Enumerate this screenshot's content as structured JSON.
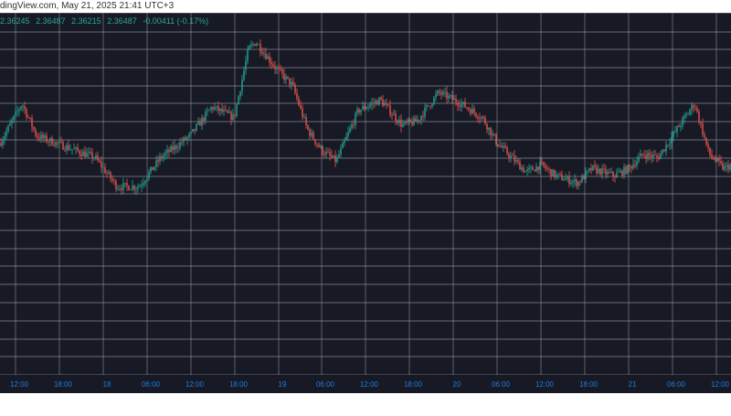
{
  "header": {
    "source_text": "dingView.com, May 21, 2025 21:41 UTC+3"
  },
  "ohlc": {
    "open": "2.36245",
    "high": "2.36487",
    "low": "2.36215",
    "close": "2.36487",
    "change": "-0.00411 (-0.17%)"
  },
  "colors": {
    "background": "#171a24",
    "grid": "#a8acb8",
    "up": "#26a69a",
    "down": "#ef5350",
    "tick_label": "#1f7ae0"
  },
  "chart_data": {
    "type": "candlestick",
    "title": "",
    "xlabel": "",
    "ylabel": "",
    "grid": true,
    "ylim": [
      0,
      100
    ],
    "x_ticks": [
      "12:00",
      "18:00",
      "18",
      "06:00",
      "12:00",
      "18:00",
      "19",
      "06:00",
      "12:00",
      "18:00",
      "20",
      "06:00",
      "12:00",
      "18:00",
      "21",
      "06:00",
      "12:00"
    ],
    "close_path": [
      [
        0,
        64
      ],
      [
        3,
        75
      ],
      [
        5,
        66
      ],
      [
        9,
        63
      ],
      [
        13,
        60
      ],
      [
        16,
        52
      ],
      [
        19,
        52
      ],
      [
        22,
        60
      ],
      [
        26,
        66
      ],
      [
        29,
        74
      ],
      [
        32,
        71
      ],
      [
        34,
        90
      ],
      [
        35,
        92
      ],
      [
        38,
        84
      ],
      [
        40,
        80
      ],
      [
        42,
        68
      ],
      [
        44,
        62
      ],
      [
        46,
        59
      ],
      [
        49,
        73
      ],
      [
        52,
        76
      ],
      [
        55,
        69
      ],
      [
        57,
        70
      ],
      [
        60,
        78
      ],
      [
        63,
        75
      ],
      [
        66,
        71
      ],
      [
        68,
        64
      ],
      [
        70,
        60
      ],
      [
        72,
        56
      ],
      [
        74,
        58
      ],
      [
        76,
        55
      ],
      [
        79,
        53
      ],
      [
        81,
        57
      ],
      [
        84,
        55
      ],
      [
        86,
        57
      ],
      [
        88,
        61
      ],
      [
        90,
        60
      ],
      [
        93,
        69
      ],
      [
        95,
        75
      ],
      [
        97,
        61
      ],
      [
        99,
        57
      ],
      [
        100,
        58
      ]
    ]
  }
}
